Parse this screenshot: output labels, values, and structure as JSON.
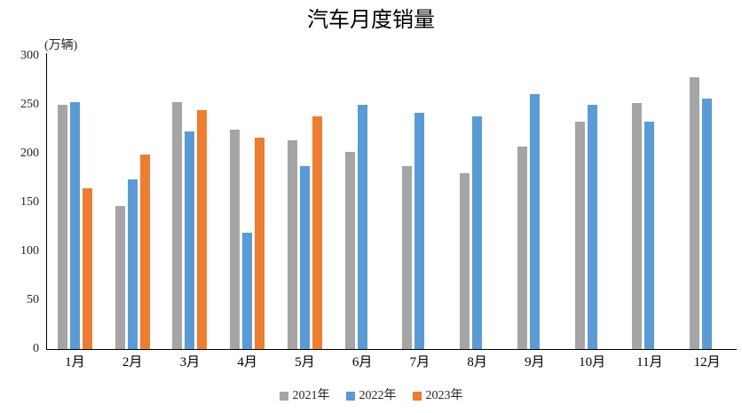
{
  "page": {
    "title": "汽车月度销量"
  },
  "chart_data": {
    "type": "bar",
    "title": "汽车月度销量",
    "unit_label": "(万辆)",
    "categories": [
      "1月",
      "2月",
      "3月",
      "4月",
      "5月",
      "6月",
      "7月",
      "8月",
      "9月",
      "10月",
      "11月",
      "12月"
    ],
    "series": [
      {
        "name": "2021年",
        "color": "#A5A5A5",
        "values": [
          250,
          146,
          253,
          225,
          214,
          202,
          187,
          180,
          207,
          233,
          252,
          278
        ]
      },
      {
        "name": "2022年",
        "color": "#5B9BD5",
        "values": [
          253,
          174,
          223,
          119,
          187,
          250,
          242,
          238,
          261,
          250,
          233,
          256
        ]
      },
      {
        "name": "2023年",
        "color": "#ED7D31",
        "values": [
          165,
          199,
          245,
          216,
          238,
          null,
          null,
          null,
          null,
          null,
          null,
          null
        ]
      }
    ],
    "ylim": [
      0,
      300
    ],
    "yticks": [
      0,
      50,
      100,
      150,
      200,
      250,
      300
    ],
    "grid": false,
    "legend_position": "bottom",
    "axis_color": "#000000",
    "text_color": "#262626"
  }
}
